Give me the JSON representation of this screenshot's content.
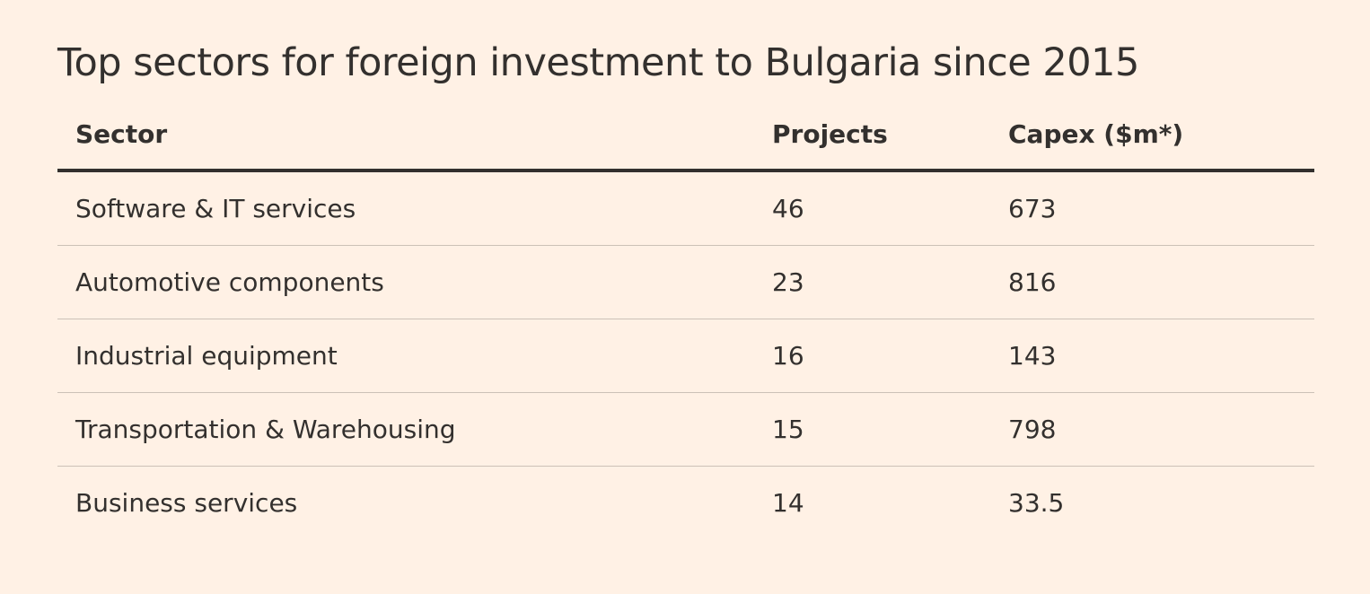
{
  "title": "Top sectors for foreign investment to Bulgaria since 2015",
  "table": {
    "columns": [
      "Sector",
      "Projects",
      "Capex ($m*)"
    ],
    "rows": [
      [
        "Software & IT services",
        46,
        673
      ],
      [
        "Automotive components",
        23,
        816
      ],
      [
        "Industrial equipment",
        16,
        143
      ],
      [
        "Transportation & Warehousing",
        15,
        798
      ],
      [
        "Business services",
        14,
        33.5
      ]
    ]
  }
}
